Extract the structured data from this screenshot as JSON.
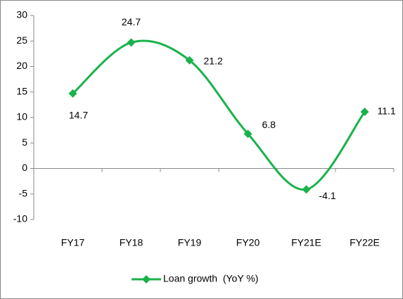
{
  "chart_data": {
    "type": "line",
    "categories": [
      "FY17",
      "FY18",
      "FY19",
      "FY20",
      "FY21E",
      "FY22E"
    ],
    "series": [
      {
        "name": "Loan growth  (YoY %)",
        "color": "#19b24b",
        "values": [
          14.7,
          24.7,
          21.2,
          6.8,
          -4.1,
          11.1
        ]
      }
    ],
    "ylim": [
      -10,
      30
    ],
    "yticks": [
      -10,
      -5,
      0,
      5,
      10,
      15,
      20,
      25,
      30
    ],
    "grid": false,
    "smooth": true,
    "data_labels": true,
    "legend": "bottom"
  }
}
